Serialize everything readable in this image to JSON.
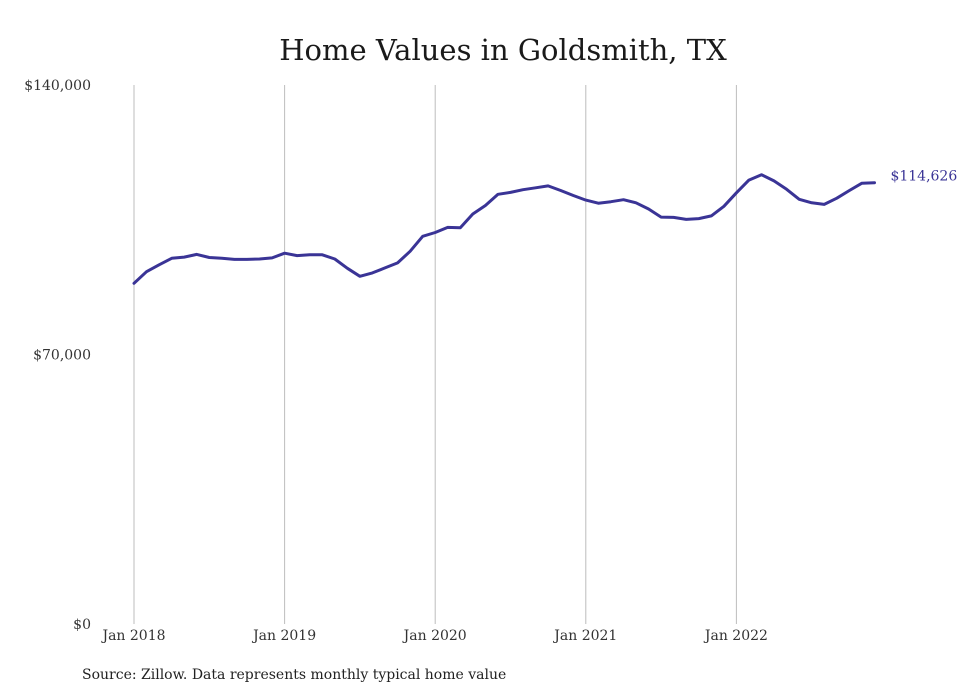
{
  "chart_data": {
    "type": "line",
    "title": "Home Values in Goldsmith, TX",
    "xlabel": "",
    "ylabel": "",
    "ylim": [
      0,
      140000
    ],
    "y_ticks": [
      {
        "value": 0,
        "label": "$0"
      },
      {
        "value": 70000,
        "label": "$70,000"
      },
      {
        "value": 140000,
        "label": "$140,000"
      }
    ],
    "x_ticks": [
      {
        "value": 2018.0,
        "label": "Jan 2018"
      },
      {
        "value": 2019.0,
        "label": "Jan 2019"
      },
      {
        "value": 2020.0,
        "label": "Jan 2020"
      },
      {
        "value": 2021.0,
        "label": "Jan 2021"
      },
      {
        "value": 2022.0,
        "label": "Jan 2022"
      }
    ],
    "grid": "vertical",
    "line_color": "#3a3496",
    "end_label": "$114,626",
    "series": [
      {
        "x": [
          "2018-01",
          "2018-02",
          "2018-03",
          "2018-04",
          "2018-05",
          "2018-06",
          "2018-07",
          "2018-08",
          "2018-09",
          "2018-10",
          "2018-11",
          "2018-12",
          "2019-01",
          "2019-02",
          "2019-03",
          "2019-04",
          "2019-05",
          "2019-06",
          "2019-07",
          "2019-08",
          "2019-09",
          "2019-10",
          "2019-11",
          "2019-12",
          "2020-01",
          "2020-02",
          "2020-03",
          "2020-04",
          "2020-05",
          "2020-06",
          "2020-07",
          "2020-08",
          "2020-09",
          "2020-10",
          "2020-11",
          "2020-12",
          "2021-01",
          "2021-02",
          "2021-03",
          "2021-04",
          "2021-05",
          "2021-06",
          "2021-07",
          "2021-08",
          "2021-09",
          "2021-10",
          "2021-11",
          "2021-12",
          "2022-01",
          "2022-02",
          "2022-03",
          "2022-04",
          "2022-05",
          "2022-06",
          "2022-07",
          "2022-08",
          "2022-09",
          "2022-10",
          "2022-11",
          "2022-12"
        ],
        "y": [
          88500,
          91500,
          93300,
          95000,
          95300,
          96000,
          95200,
          95000,
          94700,
          94700,
          94800,
          95100,
          96300,
          95700,
          95900,
          95900,
          94800,
          92400,
          90300,
          91200,
          92500,
          93800,
          96800,
          100700,
          101700,
          103000,
          102900,
          106500,
          108700,
          111600,
          112100,
          112800,
          113300,
          113800,
          112600,
          111300,
          110100,
          109300,
          109700,
          110200,
          109400,
          107800,
          105700,
          105600,
          105100,
          105300,
          106000,
          108500,
          112000,
          115300,
          116700,
          115100,
          112900,
          110300,
          109400,
          109000,
          110600,
          112600,
          114500,
          114626
        ]
      }
    ]
  },
  "source": "Source: Zillow. Data represents monthly typical home value"
}
